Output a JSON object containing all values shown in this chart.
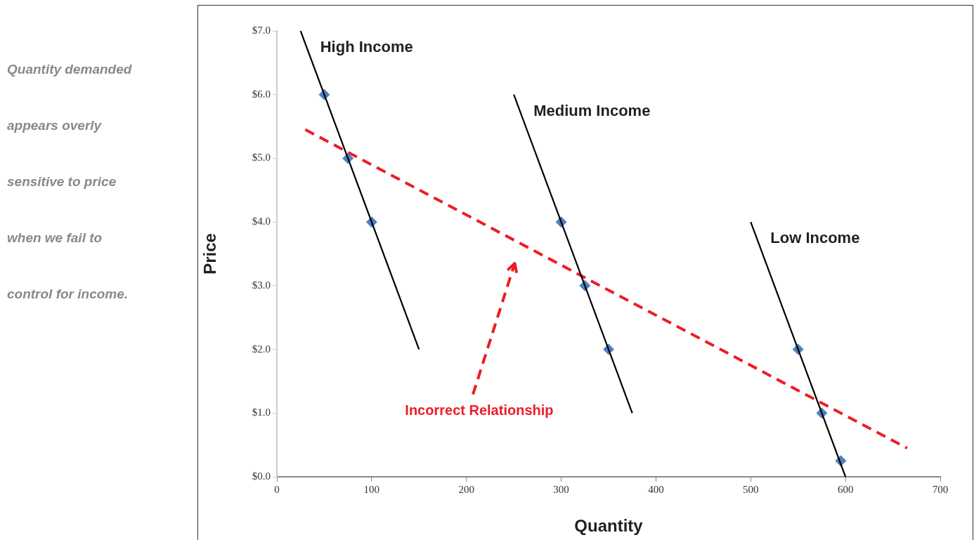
{
  "chart_data": {
    "type": "scatter",
    "xlabel": "Quantity",
    "ylabel": "Price",
    "xlim": [
      0,
      700
    ],
    "xticks": [
      0,
      100,
      200,
      300,
      400,
      500,
      600,
      700
    ],
    "ylim": [
      0,
      7
    ],
    "yticks": [
      {
        "value": 0,
        "label": "$0.0"
      },
      {
        "value": 1,
        "label": "$1.0"
      },
      {
        "value": 2,
        "label": "$2.0"
      },
      {
        "value": 3,
        "label": "$3.0"
      },
      {
        "value": 4,
        "label": "$4.0"
      },
      {
        "value": 5,
        "label": "$5.0"
      },
      {
        "value": 6,
        "label": "$6.0"
      },
      {
        "value": 7,
        "label": "$7.0"
      }
    ],
    "grid": false,
    "legend": false,
    "annotations": [
      "Quantity demanded",
      "appears overly",
      "sensitive to price",
      "when we fail to",
      "control for income.",
      "Incorrect Relationship"
    ],
    "series": [
      {
        "name": "High Income",
        "type": "line",
        "color": "#000000",
        "x": [
          25,
          150
        ],
        "values": [
          7,
          2
        ],
        "marker": "none"
      },
      {
        "name": "Medium Income",
        "type": "line",
        "color": "#000000",
        "x": [
          250,
          375
        ],
        "values": [
          6,
          1
        ],
        "marker": "none"
      },
      {
        "name": "Low Income",
        "type": "line",
        "color": "#000000",
        "x": [
          500,
          600
        ],
        "values": [
          4,
          0
        ],
        "marker": "none"
      },
      {
        "type": "scatter",
        "color": "#4f81bd",
        "x": [
          50,
          75,
          100,
          300,
          325,
          350,
          550,
          575,
          595
        ],
        "values": [
          6,
          5,
          4,
          4,
          3,
          2,
          2,
          1,
          0.25
        ],
        "marker": "diamond"
      },
      {
        "type": "line",
        "color": "#ee1c25",
        "x": [
          30,
          665
        ],
        "values": [
          5.45,
          0.45
        ],
        "marker": "none",
        "line_style": "dashed"
      }
    ]
  }
}
